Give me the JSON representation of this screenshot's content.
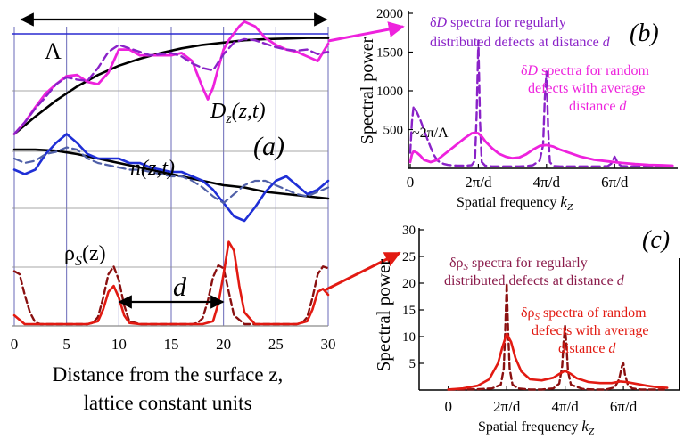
{
  "figure": {
    "panel_a_label": "(a)",
    "panel_b_label": "(b)",
    "panel_c_label": "(c)",
    "colors": {
      "magenta": "#ee22dd",
      "purple": "#8a22c8",
      "blue": "#1f2fd6",
      "black": "#000000",
      "red": "#e21a12",
      "dark_red": "#8a1010",
      "grid": "#6a6ab8",
      "hline": "#8a8a8a"
    }
  },
  "chart_data": [
    {
      "panel": "a",
      "type": "line",
      "xlabel": [
        "Distance from the surface z,",
        "lattice constant units"
      ],
      "xticks": [
        0,
        5,
        10,
        15,
        20,
        25,
        30
      ],
      "xlim": [
        0,
        30
      ],
      "annotations": {
        "lambda": "Λ",
        "d": "d",
        "Dz": "D",
        "Dz_sub": "z",
        "Dz_args": "(z,t)",
        "n": "n(z,t)",
        "rho": "ρ",
        "rho_sub": "S",
        "rho_args": "(z)"
      },
      "series": [
        {
          "group": "D",
          "style": "black-solid",
          "x": [
            0,
            2,
            4,
            6,
            8,
            10,
            12,
            14,
            16,
            18,
            20,
            22,
            24,
            26,
            28,
            30
          ],
          "y": [
            0.15,
            0.3,
            0.44,
            0.56,
            0.66,
            0.74,
            0.8,
            0.85,
            0.89,
            0.92,
            0.94,
            0.96,
            0.97,
            0.975,
            0.98,
            0.98
          ]
        },
        {
          "group": "D",
          "style": "magenta-solid",
          "x": [
            0,
            1,
            2,
            3,
            4,
            5,
            6,
            7,
            8,
            9,
            10,
            11,
            12,
            13,
            14,
            15,
            16,
            17,
            18,
            18.5,
            19,
            19.5,
            20,
            20.5,
            21,
            21.5,
            22,
            23,
            24,
            25,
            26,
            27,
            28,
            29,
            30
          ],
          "y": [
            0.15,
            0.25,
            0.38,
            0.5,
            0.58,
            0.65,
            0.66,
            0.6,
            0.58,
            0.68,
            0.88,
            0.88,
            0.83,
            0.83,
            0.83,
            0.83,
            0.85,
            0.78,
            0.55,
            0.45,
            0.55,
            0.72,
            0.88,
            0.96,
            1.02,
            1.08,
            1.12,
            1.08,
            0.98,
            0.92,
            0.88,
            0.86,
            0.82,
            0.78,
            0.93
          ]
        },
        {
          "group": "D",
          "style": "purple-dashed",
          "x": [
            0,
            1,
            2,
            3,
            4,
            5,
            6,
            7,
            8,
            9,
            10,
            11,
            12,
            13,
            14,
            15,
            16,
            17,
            18,
            19,
            20,
            21,
            22,
            23,
            24,
            25,
            26,
            27,
            28,
            29,
            30
          ],
          "y": [
            0.15,
            0.25,
            0.37,
            0.47,
            0.58,
            0.64,
            0.62,
            0.61,
            0.72,
            0.86,
            0.92,
            0.89,
            0.86,
            0.83,
            0.84,
            0.85,
            0.82,
            0.76,
            0.72,
            0.7,
            0.84,
            0.94,
            0.97,
            0.96,
            0.93,
            0.9,
            0.88,
            0.87,
            0.88,
            0.84,
            0.86
          ]
        },
        {
          "group": "n",
          "style": "black-solid",
          "x": [
            0,
            2,
            4,
            6,
            8,
            10,
            12,
            14,
            16,
            18,
            20,
            22,
            24,
            26,
            28,
            30
          ],
          "y": [
            0.04,
            0.04,
            0.035,
            0.02,
            0.0,
            -0.02,
            -0.04,
            -0.06,
            -0.08,
            -0.1,
            -0.12,
            -0.13,
            -0.15,
            -0.16,
            -0.17,
            -0.18
          ]
        },
        {
          "group": "n",
          "style": "blue-solid",
          "x": [
            0,
            1,
            2,
            3,
            4,
            5,
            6,
            7,
            8,
            9,
            10,
            11,
            12,
            13,
            14,
            15,
            16,
            17,
            18,
            19,
            20,
            21,
            22,
            23,
            24,
            25,
            26,
            27,
            28,
            29,
            30
          ],
          "y": [
            -0.05,
            -0.07,
            -0.05,
            0.02,
            0.07,
            0.11,
            0.07,
            0.02,
            0.0,
            0.0,
            0.0,
            -0.02,
            -0.02,
            -0.04,
            -0.05,
            -0.06,
            -0.06,
            -0.08,
            -0.1,
            -0.14,
            -0.2,
            -0.26,
            -0.28,
            -0.22,
            -0.15,
            -0.1,
            -0.08,
            -0.12,
            -0.16,
            -0.14,
            -0.1
          ]
        },
        {
          "group": "n",
          "style": "slate-dashed",
          "x": [
            0,
            1,
            2,
            3,
            4,
            5,
            6,
            7,
            8,
            9,
            10,
            11,
            12,
            13,
            14,
            15,
            16,
            17,
            18,
            19,
            20,
            21,
            22,
            23,
            24,
            25,
            26,
            27,
            28,
            29,
            30
          ],
          "y": [
            0.0,
            -0.02,
            -0.01,
            0.02,
            0.03,
            0.05,
            0.04,
            0.0,
            -0.02,
            -0.03,
            -0.04,
            -0.05,
            -0.05,
            -0.06,
            -0.07,
            -0.08,
            -0.08,
            -0.1,
            -0.13,
            -0.17,
            -0.2,
            -0.16,
            -0.12,
            -0.1,
            -0.1,
            -0.12,
            -0.14,
            -0.16,
            -0.17,
            -0.15,
            -0.13
          ]
        },
        {
          "group": "rho",
          "style": "dark-red-dashed",
          "x": [
            0,
            0.5,
            1,
            1.5,
            2,
            2.5,
            3,
            4,
            5,
            6,
            7,
            7.5,
            8,
            8.5,
            9,
            9.5,
            10,
            10.5,
            11,
            12,
            14,
            16,
            17,
            17.5,
            18,
            18.5,
            19,
            19.5,
            20,
            20.5,
            21,
            22,
            24,
            26,
            27,
            27.5,
            28,
            28.5,
            29,
            29.5,
            30
          ],
          "y": [
            0.9,
            0.85,
            0.5,
            0.2,
            0.03,
            0.0,
            0.0,
            0.0,
            0.0,
            0.0,
            0.0,
            0.02,
            0.12,
            0.45,
            0.85,
            0.98,
            0.75,
            0.32,
            0.05,
            0.0,
            0.0,
            0.0,
            0.0,
            0.02,
            0.1,
            0.4,
            0.8,
            1.0,
            0.95,
            0.55,
            0.15,
            0.0,
            0.0,
            0.0,
            0.0,
            0.02,
            0.12,
            0.45,
            0.85,
            0.98,
            0.95
          ]
        },
        {
          "group": "rho",
          "style": "red-solid",
          "x": [
            0,
            1,
            2,
            3,
            4,
            5,
            6,
            7,
            8,
            8.5,
            9,
            9.5,
            10,
            10.5,
            11,
            12,
            14,
            16,
            18,
            19,
            19.5,
            20,
            20.5,
            21,
            21.5,
            22,
            23,
            24,
            26,
            27,
            28,
            28.5,
            29,
            29.5,
            30
          ],
          "y": [
            0.15,
            0.0,
            0.0,
            0.0,
            0.0,
            0.0,
            0.0,
            0.0,
            0.05,
            0.25,
            0.55,
            0.65,
            0.45,
            0.15,
            0.02,
            0.0,
            0.0,
            0.0,
            0.0,
            0.05,
            0.35,
            0.85,
            1.4,
            1.25,
            0.65,
            0.2,
            0.0,
            0.0,
            0.0,
            0.0,
            0.05,
            0.25,
            0.55,
            0.6,
            0.5
          ]
        }
      ]
    },
    {
      "panel": "b",
      "type": "line",
      "ylabel": "Spectral power",
      "xlabel": "Spatial frequency",
      "xlabel_var": "k",
      "xlabel_sub": "Z",
      "yticks": [
        500,
        1000,
        1500,
        2000
      ],
      "ylim": [
        0,
        2000
      ],
      "xticks": [
        "0",
        "2π/d",
        "4π/d",
        "6π/d"
      ],
      "xlim": [
        0,
        7.8
      ],
      "annotation_peak": "~2π/Λ",
      "legend_regular": {
        "prefix": "δ",
        "var": "D",
        "text_a": " spectra for regularly",
        "text_b": "distributed defects at distance",
        "tail": "d"
      },
      "legend_random": {
        "prefix": "δ",
        "var": "D",
        "text_a": " spectra for random",
        "text_b": "defects with average",
        "text_c": "distance",
        "tail": "d"
      },
      "series": [
        {
          "name": "regular",
          "style": "purple-dashed",
          "x": [
            0,
            0.05,
            0.1,
            0.2,
            0.3,
            0.4,
            0.5,
            0.6,
            0.7,
            0.8,
            0.9,
            1.0,
            1.1,
            1.2,
            1.4,
            1.6,
            1.8,
            1.9,
            1.95,
            2.0,
            2.05,
            2.1,
            2.2,
            2.4,
            2.6,
            2.8,
            3.0,
            3.2,
            3.4,
            3.6,
            3.8,
            3.9,
            3.95,
            4.0,
            4.05,
            4.1,
            4.2,
            4.4,
            4.6,
            4.8,
            5.0,
            5.2,
            5.4,
            5.6,
            5.8,
            5.9,
            6.0,
            6.1,
            6.2,
            6.4,
            6.6,
            6.8,
            7.0,
            7.2,
            7.5
          ],
          "y": [
            200,
            600,
            800,
            720,
            620,
            500,
            380,
            270,
            170,
            100,
            70,
            55,
            45,
            40,
            35,
            35,
            40,
            100,
            700,
            1650,
            600,
            80,
            35,
            25,
            25,
            25,
            25,
            25,
            30,
            40,
            100,
            300,
            900,
            1250,
            500,
            80,
            30,
            25,
            25,
            25,
            25,
            25,
            25,
            25,
            30,
            60,
            150,
            60,
            30,
            25,
            25,
            25,
            25,
            25,
            25
          ]
        },
        {
          "name": "random",
          "style": "magenta-solid",
          "x": [
            0,
            0.05,
            0.1,
            0.2,
            0.3,
            0.4,
            0.6,
            0.8,
            1.0,
            1.2,
            1.4,
            1.6,
            1.8,
            1.9,
            2.0,
            2.1,
            2.2,
            2.4,
            2.6,
            2.8,
            3.0,
            3.2,
            3.4,
            3.6,
            3.8,
            4.0,
            4.2,
            4.4,
            4.6,
            4.8,
            5.0,
            5.4,
            5.8,
            6.2,
            6.6,
            7.0,
            7.4,
            7.7
          ],
          "y": [
            80,
            180,
            220,
            200,
            160,
            110,
            80,
            110,
            180,
            250,
            320,
            390,
            450,
            460,
            450,
            410,
            350,
            260,
            190,
            150,
            130,
            140,
            180,
            240,
            290,
            300,
            280,
            240,
            210,
            180,
            150,
            110,
            90,
            70,
            55,
            45,
            40,
            35
          ]
        }
      ]
    },
    {
      "panel": "c",
      "type": "line",
      "ylabel": "Spectral power",
      "xlabel": "Spatial frequency",
      "xlabel_var": "k",
      "xlabel_sub": "Z",
      "yticks": [
        5,
        10,
        15,
        20,
        25,
        30
      ],
      "ylim": [
        0,
        30
      ],
      "xticks": [
        "0",
        "2π/d",
        "4π/d",
        "6π/d"
      ],
      "xlim": [
        -1.0,
        7.8
      ],
      "legend_regular": {
        "prefix": "δρ",
        "sub": "S",
        "text_a": " spectra for regularly",
        "text_b": "distributed defects at distance",
        "tail": "d"
      },
      "legend_random": {
        "prefix": "δρ",
        "sub": "S",
        "text_a": " spectra of random",
        "text_b": "defects with average",
        "text_c": "distance",
        "tail": "d"
      },
      "series": [
        {
          "name": "regular",
          "style": "dark-red-dashed",
          "x": [
            0,
            0.5,
            1.0,
            1.5,
            1.8,
            1.9,
            1.95,
            2.0,
            2.05,
            2.1,
            2.2,
            2.4,
            2.8,
            3.2,
            3.6,
            3.8,
            3.9,
            3.95,
            4.0,
            4.05,
            4.1,
            4.2,
            4.6,
            5.0,
            5.4,
            5.7,
            5.85,
            5.95,
            6.0,
            6.05,
            6.15,
            6.3,
            6.6,
            7.0,
            7.4
          ],
          "y": [
            0.1,
            0.1,
            0.15,
            0.3,
            1.0,
            4.0,
            11.0,
            20.0,
            11.0,
            4.0,
            1.0,
            0.3,
            0.1,
            0.1,
            0.3,
            1.2,
            4.5,
            9.0,
            12.0,
            8.0,
            3.5,
            1.0,
            0.2,
            0.1,
            0.1,
            0.5,
            2.0,
            4.5,
            5.0,
            3.0,
            1.0,
            0.3,
            0.1,
            0.1,
            0.1
          ]
        },
        {
          "name": "random",
          "style": "red-solid",
          "x": [
            0,
            0.5,
            1.0,
            1.4,
            1.7,
            1.85,
            2.0,
            2.15,
            2.3,
            2.5,
            2.8,
            3.2,
            3.6,
            3.8,
            4.0,
            4.2,
            4.4,
            4.8,
            5.2,
            5.6,
            5.9,
            6.1,
            6.4,
            6.8,
            7.2,
            7.5
          ],
          "y": [
            0.1,
            0.3,
            0.8,
            2.0,
            5.0,
            8.0,
            10.5,
            9.0,
            6.0,
            3.5,
            2.0,
            1.8,
            2.3,
            3.0,
            3.6,
            3.0,
            2.2,
            1.5,
            1.3,
            1.3,
            1.6,
            1.5,
            1.2,
            0.8,
            0.5,
            0.4
          ]
        }
      ]
    }
  ]
}
